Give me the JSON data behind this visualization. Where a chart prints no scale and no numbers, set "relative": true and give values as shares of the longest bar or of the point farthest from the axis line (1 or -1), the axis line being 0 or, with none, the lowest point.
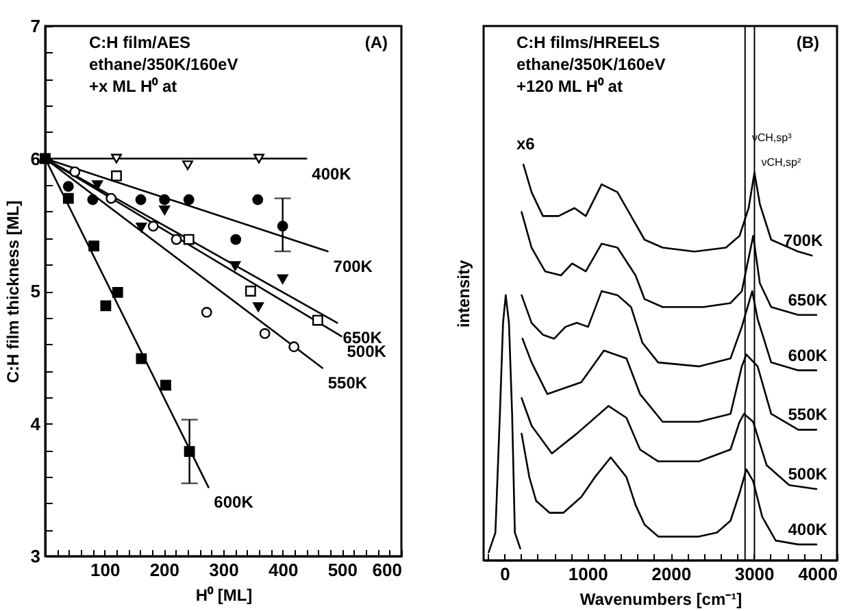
{
  "chart_data": [
    {
      "type": "scatter",
      "xlabel": "H⁰   [ML]",
      "ylabel": "C:H film thickness [ML]",
      "annotations": [
        "C:H film/AES",
        "ethane/350K/160eV",
        "+x ML  H⁰  at",
        "(A)"
      ],
      "xlim": [
        0,
        600
      ],
      "ylim": [
        3,
        7
      ],
      "xticks": [
        {
          "value": 0,
          "label": null
        },
        {
          "value": 20,
          "label": null
        },
        {
          "value": 40,
          "label": null
        },
        {
          "value": 60,
          "label": null
        },
        {
          "value": 80,
          "label": null
        },
        100,
        {
          "value": 120,
          "label": null
        },
        {
          "value": 140,
          "label": null
        },
        {
          "value": 160,
          "label": null
        },
        {
          "value": 180,
          "label": null
        },
        200,
        {
          "value": 220,
          "label": null
        },
        {
          "value": 240,
          "label": null
        },
        {
          "value": 260,
          "label": null
        },
        {
          "value": 280,
          "label": null
        },
        300,
        {
          "value": 320,
          "label": null
        },
        {
          "value": 340,
          "label": null
        },
        {
          "value": 360,
          "label": null
        },
        {
          "value": 380,
          "label": null
        },
        400,
        {
          "value": 420,
          "label": null
        },
        {
          "value": 440,
          "label": null
        },
        {
          "value": 460,
          "label": null
        },
        {
          "value": 480,
          "label": null
        },
        500,
        {
          "value": 520,
          "label": null
        },
        {
          "value": 540,
          "label": null
        },
        {
          "value": 560,
          "label": null
        },
        {
          "value": 580,
          "label": null
        },
        600
      ],
      "yticks": [
        3,
        {
          "value": 3.2,
          "label": null
        },
        {
          "value": 3.4,
          "label": null
        },
        {
          "value": 3.6,
          "label": null
        },
        {
          "value": 3.8,
          "label": null
        },
        4,
        {
          "value": 4.2,
          "label": null
        },
        {
          "value": 4.4,
          "label": null
        },
        {
          "value": 4.6,
          "label": null
        },
        {
          "value": 4.8,
          "label": null
        },
        5,
        {
          "value": 5.2,
          "label": null
        },
        {
          "value": 5.4,
          "label": null
        },
        {
          "value": 5.6,
          "label": null
        },
        {
          "value": 5.8,
          "label": null
        },
        6,
        {
          "value": 6.2,
          "label": null
        },
        {
          "value": 6.4,
          "label": null
        },
        {
          "value": 6.6,
          "label": null
        },
        {
          "value": 6.8,
          "label": null
        },
        7
      ],
      "series": [
        {
          "marker": "triangle",
          "color": "#ffffff",
          "x": [
            120,
            240,
            360
          ],
          "values": [
            6.0,
            5.95,
            6.0
          ]
        },
        {
          "marker": "circle",
          "color": "#000000",
          "x": [
            39,
            80,
            161,
            201,
            242,
            321,
            358,
            400
          ],
          "values": [
            5.79,
            5.69,
            5.69,
            5.69,
            5.69,
            5.39,
            5.69,
            5.49
          ],
          "errors": [
            null,
            null,
            null,
            null,
            null,
            null,
            null,
            [
              5.3,
              5.7
            ]
          ]
        },
        {
          "marker": "triangle",
          "color": "#000000",
          "x": [
            88,
            162,
            201,
            320,
            359,
            400
          ],
          "values": [
            5.8,
            5.48,
            5.61,
            5.19,
            4.88,
            5.09
          ]
        },
        {
          "marker": "square",
          "color": "#ffffff",
          "x": [
            120,
            242,
            346,
            459
          ],
          "values": [
            5.87,
            5.39,
            5.0,
            4.78
          ]
        },
        {
          "marker": "circle",
          "color": "#ffffff",
          "x": [
            50,
            111,
            182,
            221,
            272,
            370,
            419
          ],
          "values": [
            5.9,
            5.7,
            5.49,
            5.39,
            4.84,
            4.68,
            4.58
          ]
        },
        {
          "marker": "square",
          "color": "#000000",
          "x": [
            0,
            39,
            82,
            102,
            122,
            162,
            203,
            243
          ],
          "values": [
            6.0,
            5.7,
            5.34,
            4.89,
            4.99,
            4.49,
            4.29,
            3.79
          ],
          "errors": [
            null,
            null,
            null,
            null,
            null,
            null,
            null,
            [
              3.55,
              4.03
            ]
          ]
        },
        {
          "type": "line",
          "name": "400K",
          "color": "#000000",
          "x": [
            0,
            440
          ],
          "values": [
            6.0,
            6.0
          ]
        },
        {
          "type": "line",
          "name": "700K",
          "color": "#000000",
          "x": [
            0,
            476
          ],
          "values": [
            6.0,
            5.3
          ]
        },
        {
          "type": "line",
          "name": "650K",
          "color": "#000000",
          "x": [
            0,
            492
          ],
          "values": [
            6.0,
            4.76
          ]
        },
        {
          "type": "line",
          "name": "500K",
          "color": "#000000",
          "x": [
            0,
            499
          ],
          "values": [
            6.0,
            4.66
          ]
        },
        {
          "type": "line",
          "name": "550K",
          "color": "#000000",
          "x": [
            0,
            467
          ],
          "values": [
            6.0,
            4.42
          ]
        },
        {
          "type": "line",
          "name": "600K",
          "color": "#000000",
          "x": [
            0,
            275
          ],
          "values": [
            6.0,
            3.52
          ]
        }
      ]
    },
    {
      "type": "line",
      "relative": true,
      "xlabel": "Wavenumbers  [cm⁻¹]",
      "ylabel": "intensity",
      "annotations": [
        "C:H films/HREELS",
        "ethane/350K/160eV",
        "+120 ML  H⁰  at",
        "(B)",
        "x6"
      ],
      "xlim": [
        -250,
        4000
      ],
      "xticks": [
        {
          "value": -200,
          "label": null
        },
        0,
        {
          "value": 200,
          "label": null
        },
        {
          "value": 400,
          "label": null
        },
        {
          "value": 600,
          "label": null
        },
        {
          "value": 800,
          "label": null
        },
        1000,
        {
          "value": 1200,
          "label": null
        },
        {
          "value": 1400,
          "label": null
        },
        {
          "value": 1600,
          "label": null
        },
        {
          "value": 1800,
          "label": null
        },
        2000,
        {
          "value": 2200,
          "label": null
        },
        {
          "value": 2400,
          "label": null
        },
        {
          "value": 2600,
          "label": null
        },
        {
          "value": 2800,
          "label": null
        },
        3000,
        {
          "value": 3200,
          "label": null
        },
        {
          "value": 3400,
          "label": null
        },
        {
          "value": 3600,
          "label": null
        },
        {
          "value": 3800,
          "label": null
        },
        4000
      ],
      "ref_lines": [
        {
          "axis": "x",
          "value": 2894,
          "label": "νCH,sp³"
        },
        {
          "axis": "x",
          "value": 3007,
          "label": "νCH,sp²"
        }
      ],
      "series": [
        {
          "name": "700K",
          "color": "#000000",
          "x": [
            229,
            327,
            463,
            653,
            843,
            979,
            1169,
            1360,
            1523,
            1686,
            1903,
            2284,
            2664,
            2828,
            2937,
            3007,
            3072,
            3208,
            3534,
            3697
          ],
          "values": [
            1.0,
            0.93,
            0.87,
            0.87,
            0.89,
            0.87,
            0.95,
            0.93,
            0.87,
            0.81,
            0.79,
            0.78,
            0.79,
            0.82,
            0.89,
            0.98,
            0.9,
            0.81,
            0.78,
            0.77
          ]
        },
        {
          "name": "650K",
          "color": "#000000",
          "x": [
            207,
            327,
            490,
            680,
            815,
            979,
            1169,
            1360,
            1577,
            1686,
            1903,
            2393,
            2719,
            2855,
            2992,
            3072,
            3208,
            3534,
            3752
          ],
          "values": [
            0.88,
            0.79,
            0.73,
            0.72,
            0.75,
            0.73,
            0.8,
            0.79,
            0.72,
            0.66,
            0.64,
            0.64,
            0.65,
            0.68,
            0.82,
            0.7,
            0.64,
            0.62,
            0.62
          ]
        },
        {
          "name": "600K",
          "color": "#000000",
          "x": [
            207,
            327,
            463,
            599,
            735,
            870,
            1006,
            1169,
            1360,
            1523,
            1659,
            1849,
            2339,
            2719,
            2855,
            2980,
            3045,
            3208,
            3534,
            3752
          ],
          "values": [
            0.67,
            0.6,
            0.57,
            0.56,
            0.59,
            0.6,
            0.59,
            0.68,
            0.67,
            0.64,
            0.55,
            0.5,
            0.49,
            0.51,
            0.59,
            0.68,
            0.61,
            0.5,
            0.48,
            0.48
          ]
        },
        {
          "name": "550K",
          "color": "#000000",
          "x": [
            218,
            327,
            517,
            653,
            925,
            1197,
            1468,
            1631,
            1903,
            2339,
            2719,
            2855,
            2910,
            3045,
            3208,
            3534,
            3752
          ],
          "values": [
            0.56,
            0.5,
            0.42,
            0.43,
            0.45,
            0.53,
            0.51,
            0.42,
            0.35,
            0.35,
            0.37,
            0.49,
            0.52,
            0.49,
            0.37,
            0.33,
            0.33
          ]
        },
        {
          "name": "500K",
          "color": "#000000",
          "x": [
            207,
            327,
            571,
            870,
            1251,
            1468,
            1631,
            1849,
            2339,
            2719,
            2828,
            2882,
            2991,
            3154,
            3425,
            3752
          ],
          "values": [
            0.41,
            0.34,
            0.27,
            0.32,
            0.39,
            0.36,
            0.28,
            0.25,
            0.25,
            0.28,
            0.35,
            0.37,
            0.35,
            0.24,
            0.19,
            0.18
          ]
        },
        {
          "name": "400K",
          "color": "#000000",
          "x": [
            207,
            300,
            382,
            545,
            708,
            925,
            1088,
            1279,
            1468,
            1577,
            1686,
            1850,
            2067,
            2339,
            2556,
            2719,
            2828,
            2909,
            2991,
            3100,
            3262,
            3534,
            3752
          ],
          "values": [
            0.32,
            0.21,
            0.15,
            0.12,
            0.12,
            0.16,
            0.21,
            0.26,
            0.21,
            0.14,
            0.09,
            0.06,
            0.06,
            0.06,
            0.07,
            0.1,
            0.17,
            0.23,
            0.2,
            0.11,
            0.05,
            0.04,
            0.04
          ]
        },
        {
          "color": "#000000",
          "x": [
            -189,
            -108,
            -54,
            -16,
            16,
            55,
            93,
            126,
            191
          ],
          "values": [
            0.02,
            0.07,
            0.37,
            0.6,
            0.67,
            0.6,
            0.37,
            0.07,
            0.03
          ]
        }
      ]
    }
  ]
}
